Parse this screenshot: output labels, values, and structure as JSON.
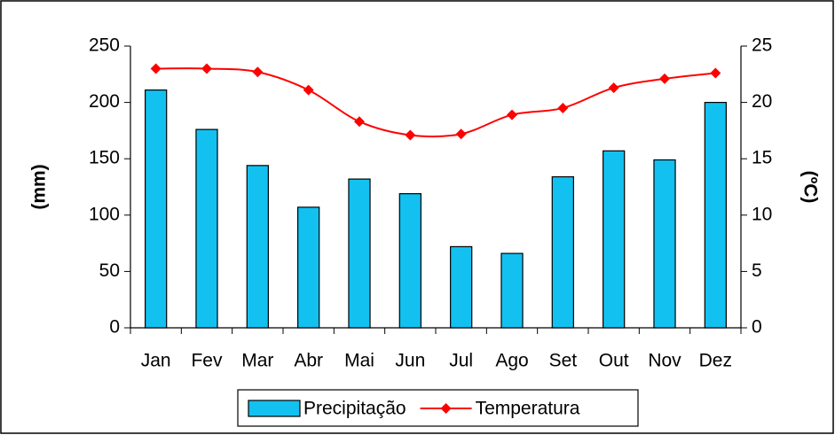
{
  "chart_data": {
    "type": "combo",
    "categories": [
      "Jan",
      "Fev",
      "Mar",
      "Abr",
      "Mai",
      "Jun",
      "Jul",
      "Ago",
      "Set",
      "Out",
      "Nov",
      "Dez"
    ],
    "series": [
      {
        "name": "Precipitação",
        "type": "bar",
        "color": "#13c1f0",
        "values": [
          211,
          176,
          144,
          107,
          132,
          119,
          72,
          66,
          134,
          157,
          149,
          200
        ]
      },
      {
        "name": "Temperatura",
        "type": "line",
        "axis": "y2",
        "color": "#ff0000",
        "values": [
          23.0,
          23.0,
          22.7,
          21.1,
          18.3,
          17.1,
          17.2,
          18.9,
          19.5,
          21.3,
          22.1,
          22.6
        ]
      }
    ],
    "ylabel": "(mm)",
    "y2label": "(ºC)",
    "ylim": [
      0,
      250
    ],
    "yticks": [
      0,
      50,
      100,
      150,
      200,
      250
    ],
    "y2lim": [
      0,
      25
    ],
    "y2ticks": [
      0,
      5,
      10,
      15,
      20,
      25
    ],
    "grid": false,
    "legend": "bottom"
  }
}
